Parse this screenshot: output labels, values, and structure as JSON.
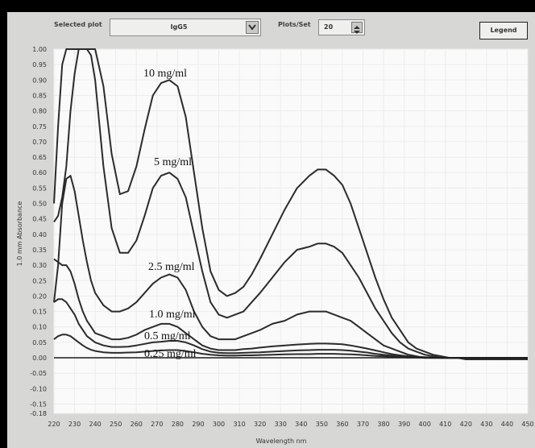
{
  "toolbar": {
    "selected_plot_label": "Selected plot",
    "selected_plot_value": "IgG5",
    "plots_per_set_label": "Plots/Set",
    "plots_per_set_value": "20",
    "legend_button": "Legend"
  },
  "chart_data": {
    "type": "line",
    "xlabel": "Wavelength nm",
    "ylabel": "1.0 mm Absorbance",
    "xlim": [
      220,
      450
    ],
    "ylim": [
      -0.18,
      1.0
    ],
    "x_ticks": [
      220,
      230,
      240,
      250,
      260,
      270,
      280,
      290,
      300,
      310,
      320,
      330,
      340,
      350,
      360,
      370,
      380,
      390,
      400,
      410,
      420,
      430,
      440,
      450
    ],
    "y_ticks": [
      1.0,
      0.95,
      0.9,
      0.85,
      0.8,
      0.75,
      0.7,
      0.65,
      0.6,
      0.55,
      0.5,
      0.45,
      0.4,
      0.35,
      0.3,
      0.25,
      0.2,
      0.15,
      0.1,
      0.05,
      0.0,
      -0.05,
      -0.1,
      -0.15,
      -0.18
    ],
    "y_tick_labels": [
      "1.00",
      "0.95",
      "0.90",
      "0.85",
      "0.80",
      "0.75",
      "0.70",
      "0.65",
      "0.60",
      "0.55",
      "0.50",
      "0.45",
      "0.40",
      "0.35",
      "0.30",
      "0.25",
      "0.20",
      "0.15",
      "0.10",
      "0.05",
      "0.00",
      "-0.05",
      "-0.10",
      "-0.15",
      "-0.18"
    ],
    "grid": true,
    "annotations": [
      "10 mg/ml",
      "5 mg/ml",
      "2.5 mg/ml",
      "1.0 mg/ml",
      "0.5 mg/ml",
      "0.25 mg/ml"
    ],
    "series": [
      {
        "x": [
          220,
          222,
          224,
          226,
          228,
          230,
          232,
          234,
          236,
          238,
          240,
          244,
          248,
          252,
          256,
          260,
          264,
          268,
          272,
          276,
          280,
          284,
          288,
          292,
          296,
          300,
          304,
          308,
          312,
          316,
          320,
          326,
          332,
          338,
          344,
          348,
          352,
          356,
          360,
          364,
          368,
          372,
          376,
          380,
          384,
          388,
          392,
          396,
          400,
          404,
          408,
          412,
          416,
          420,
          424,
          430,
          440,
          450
        ],
        "y": [
          0.5,
          0.75,
          0.95,
          1.0,
          1.0,
          1.0,
          1.0,
          1.0,
          1.0,
          1.0,
          1.0,
          0.88,
          0.66,
          0.53,
          0.54,
          0.62,
          0.74,
          0.85,
          0.89,
          0.9,
          0.88,
          0.78,
          0.6,
          0.42,
          0.28,
          0.22,
          0.2,
          0.21,
          0.23,
          0.27,
          0.32,
          0.4,
          0.48,
          0.55,
          0.59,
          0.61,
          0.61,
          0.59,
          0.56,
          0.5,
          0.42,
          0.34,
          0.26,
          0.19,
          0.13,
          0.09,
          0.05,
          0.03,
          0.02,
          0.01,
          0.005,
          0.0,
          0.0,
          -0.005,
          -0.005,
          -0.005,
          -0.005,
          -0.005
        ]
      },
      {
        "x": [
          220,
          222,
          224,
          226,
          228,
          230,
          232,
          234,
          236,
          238,
          240,
          244,
          248,
          252,
          256,
          260,
          264,
          268,
          272,
          276,
          280,
          284,
          288,
          292,
          296,
          300,
          304,
          308,
          312,
          316,
          320,
          326,
          332,
          338,
          344,
          348,
          352,
          356,
          360,
          364,
          368,
          372,
          376,
          380,
          384,
          388,
          392,
          396,
          400,
          404,
          408,
          412,
          416,
          420,
          424,
          430,
          440,
          450
        ],
        "y": [
          0.44,
          0.46,
          0.52,
          0.62,
          0.8,
          0.92,
          1.0,
          1.0,
          1.0,
          0.98,
          0.9,
          0.62,
          0.42,
          0.34,
          0.34,
          0.38,
          0.46,
          0.55,
          0.59,
          0.6,
          0.58,
          0.52,
          0.4,
          0.28,
          0.18,
          0.14,
          0.13,
          0.14,
          0.15,
          0.18,
          0.21,
          0.26,
          0.31,
          0.35,
          0.36,
          0.37,
          0.37,
          0.36,
          0.34,
          0.3,
          0.26,
          0.21,
          0.16,
          0.12,
          0.08,
          0.05,
          0.03,
          0.02,
          0.01,
          0.005,
          0.0,
          0.0,
          0.0,
          0.0,
          0.0,
          0.0,
          -0.005,
          -0.005
        ]
      },
      {
        "x": [
          220,
          222,
          224,
          226,
          228,
          230,
          232,
          234,
          236,
          238,
          240,
          244,
          248,
          252,
          256,
          260,
          264,
          268,
          272,
          276,
          280,
          284,
          288,
          292,
          296,
          300,
          304,
          308,
          312,
          316,
          320,
          326,
          332,
          338,
          344,
          348,
          352,
          356,
          360,
          364,
          368,
          372,
          376,
          380,
          384,
          388,
          392,
          396,
          400,
          404,
          408,
          412,
          416,
          420,
          424,
          430,
          440,
          450
        ],
        "y": [
          0.18,
          0.3,
          0.5,
          0.58,
          0.59,
          0.54,
          0.46,
          0.38,
          0.31,
          0.25,
          0.21,
          0.17,
          0.15,
          0.15,
          0.16,
          0.18,
          0.21,
          0.24,
          0.26,
          0.27,
          0.26,
          0.22,
          0.15,
          0.1,
          0.07,
          0.06,
          0.06,
          0.06,
          0.07,
          0.08,
          0.09,
          0.11,
          0.12,
          0.14,
          0.15,
          0.15,
          0.15,
          0.14,
          0.13,
          0.12,
          0.1,
          0.08,
          0.06,
          0.04,
          0.03,
          0.02,
          0.01,
          0.005,
          0.0,
          0.0,
          0.0,
          0.0,
          0.0,
          0.0,
          0.0,
          0.0,
          0.0,
          0.0
        ]
      },
      {
        "x": [
          220,
          222,
          224,
          226,
          228,
          230,
          232,
          234,
          236,
          238,
          240,
          244,
          248,
          252,
          256,
          260,
          264,
          268,
          272,
          276,
          280,
          284,
          288,
          292,
          296,
          300,
          304,
          308,
          312,
          316,
          320,
          326,
          332,
          338,
          344,
          348,
          352,
          356,
          360,
          364,
          368,
          372,
          376,
          380,
          384,
          388,
          392,
          396,
          400,
          404,
          408,
          412,
          416,
          420,
          424,
          430,
          440,
          450
        ],
        "y": [
          0.32,
          0.31,
          0.3,
          0.3,
          0.28,
          0.24,
          0.19,
          0.15,
          0.12,
          0.1,
          0.08,
          0.07,
          0.06,
          0.06,
          0.065,
          0.075,
          0.09,
          0.1,
          0.11,
          0.11,
          0.1,
          0.08,
          0.06,
          0.04,
          0.03,
          0.025,
          0.025,
          0.025,
          0.028,
          0.03,
          0.033,
          0.037,
          0.04,
          0.043,
          0.045,
          0.046,
          0.046,
          0.045,
          0.044,
          0.04,
          0.035,
          0.03,
          0.024,
          0.018,
          0.012,
          0.008,
          0.005,
          0.003,
          0.002,
          0.001,
          0.0,
          0.0,
          0.0,
          0.0,
          0.0,
          0.0,
          0.0,
          0.0
        ]
      },
      {
        "x": [
          220,
          222,
          224,
          226,
          228,
          230,
          232,
          234,
          236,
          238,
          240,
          244,
          248,
          252,
          256,
          260,
          264,
          268,
          272,
          276,
          280,
          284,
          288,
          292,
          296,
          300,
          304,
          308,
          312,
          316,
          320,
          326,
          332,
          338,
          344,
          348,
          352,
          356,
          360,
          364,
          368,
          372,
          376,
          380,
          384,
          388,
          392,
          396,
          400,
          404,
          408,
          412,
          416,
          420,
          424,
          430,
          440,
          450
        ],
        "y": [
          0.18,
          0.19,
          0.19,
          0.18,
          0.16,
          0.14,
          0.11,
          0.09,
          0.07,
          0.06,
          0.05,
          0.04,
          0.035,
          0.035,
          0.036,
          0.04,
          0.045,
          0.05,
          0.052,
          0.055,
          0.055,
          0.05,
          0.04,
          0.028,
          0.02,
          0.016,
          0.015,
          0.015,
          0.016,
          0.017,
          0.018,
          0.02,
          0.022,
          0.024,
          0.025,
          0.026,
          0.026,
          0.026,
          0.025,
          0.023,
          0.02,
          0.017,
          0.013,
          0.01,
          0.007,
          0.005,
          0.003,
          0.002,
          0.001,
          0.0,
          0.0,
          0.0,
          0.0,
          0.0,
          0.0,
          0.0,
          0.0,
          0.0
        ]
      },
      {
        "x": [
          220,
          222,
          224,
          226,
          228,
          230,
          232,
          234,
          236,
          238,
          240,
          244,
          248,
          252,
          256,
          260,
          264,
          268,
          272,
          276,
          280,
          284,
          288,
          292,
          296,
          300,
          304,
          308,
          312,
          316,
          320,
          326,
          332,
          338,
          344,
          348,
          352,
          356,
          360,
          364,
          368,
          372,
          376,
          380,
          384,
          388,
          392,
          396,
          400,
          404,
          408,
          412,
          416,
          420,
          424,
          430,
          440,
          450
        ],
        "y": [
          0.06,
          0.07,
          0.075,
          0.075,
          0.07,
          0.06,
          0.05,
          0.04,
          0.032,
          0.026,
          0.022,
          0.018,
          0.016,
          0.016,
          0.017,
          0.018,
          0.02,
          0.022,
          0.024,
          0.025,
          0.025,
          0.022,
          0.018,
          0.013,
          0.01,
          0.008,
          0.007,
          0.007,
          0.008,
          0.008,
          0.009,
          0.01,
          0.011,
          0.012,
          0.012,
          0.013,
          0.013,
          0.013,
          0.012,
          0.011,
          0.01,
          0.008,
          0.006,
          0.005,
          0.003,
          0.002,
          0.001,
          0.001,
          0.0,
          0.0,
          0.0,
          0.0,
          0.0,
          0.0,
          0.0,
          0.0,
          0.0,
          0.0
        ]
      }
    ],
    "colors": {
      "line": "#2b2b2b",
      "zero_line": "#1a1a1a",
      "grid": "#ececec",
      "plot_bg": "#fafafa"
    }
  }
}
